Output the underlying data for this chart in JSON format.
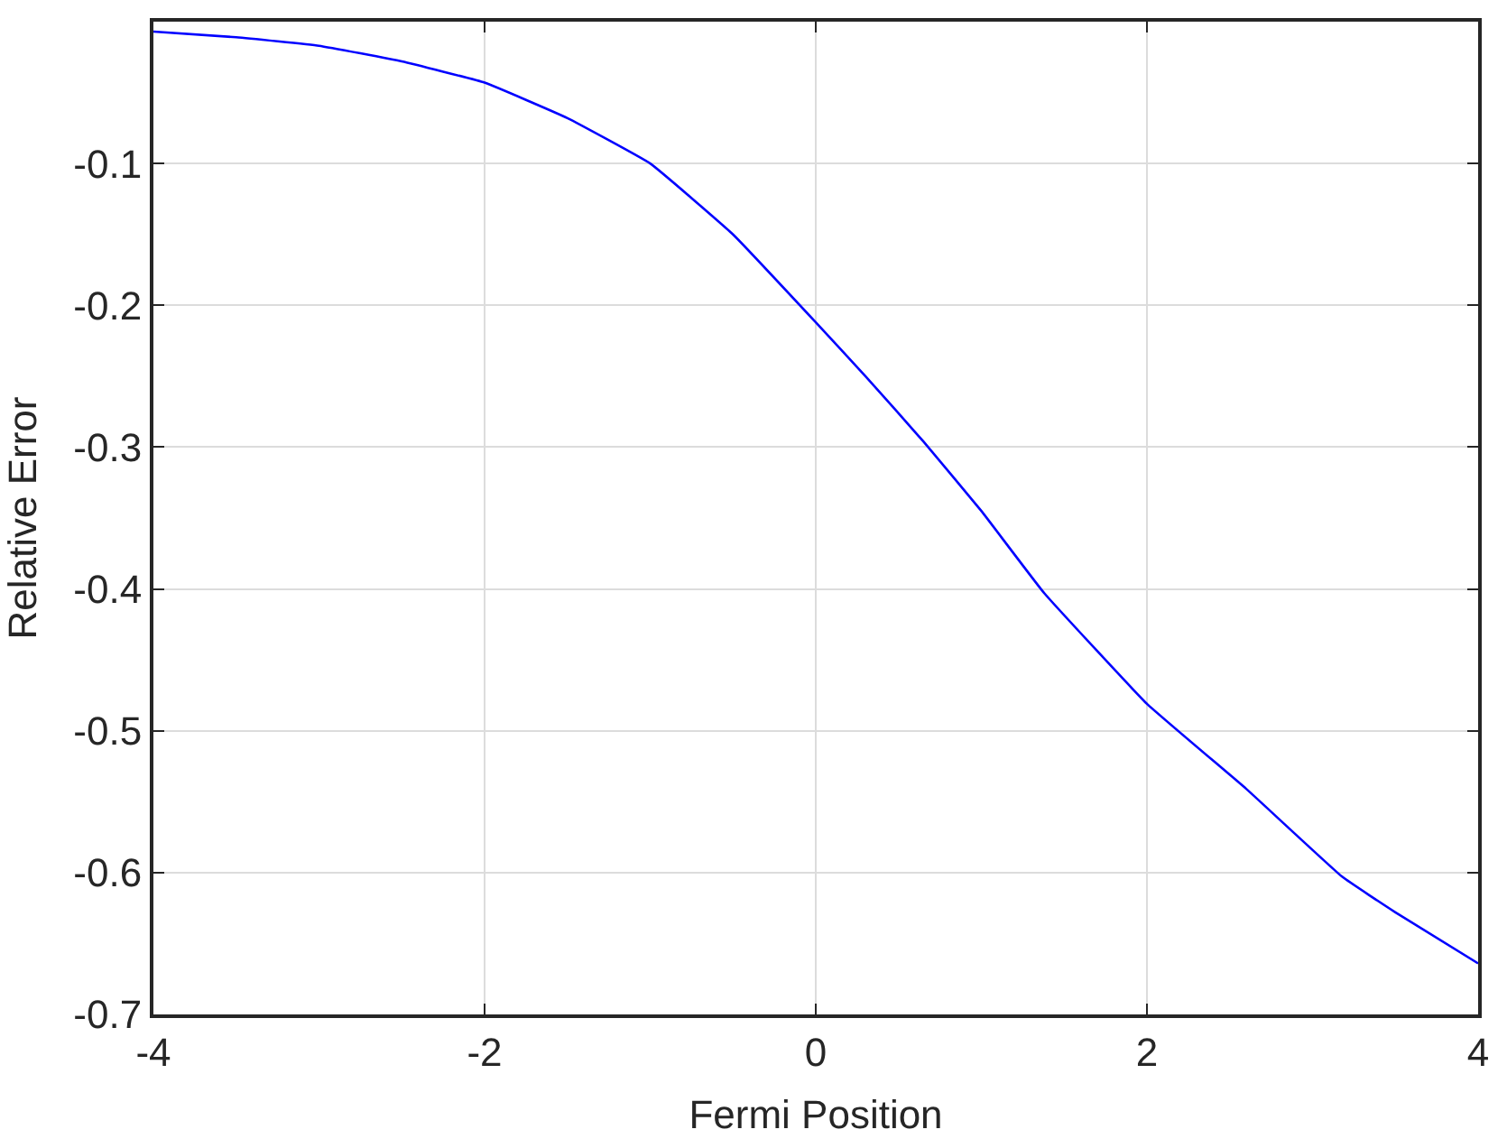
{
  "chart_data": {
    "type": "line",
    "xlabel": "Fermi Position",
    "ylabel": "Relative Error",
    "x": [
      -4,
      -3.5,
      -3,
      -2.5,
      -2,
      -1.5,
      -1,
      -0.5,
      0,
      0.3,
      0.65,
      1,
      1.38,
      2,
      2.6,
      3.18,
      3.5,
      4
    ],
    "series": [
      {
        "color": "#0000ff",
        "values": [
          -0.007,
          -0.011,
          -0.017,
          -0.028,
          -0.043,
          -0.068,
          -0.1,
          -0.15,
          -0.212,
          -0.25,
          -0.296,
          -0.345,
          -0.403,
          -0.481,
          -0.541,
          -0.603,
          -0.628,
          -0.664
        ]
      }
    ],
    "xlim": [
      -4,
      4
    ],
    "xticks": [
      -4,
      -2,
      0,
      2,
      4
    ],
    "ylim": [
      -0.7,
      0
    ],
    "yticks": [
      -0.7,
      -0.6,
      -0.5,
      -0.4,
      -0.3,
      -0.2,
      -0.1
    ],
    "grid": true,
    "marker": "none",
    "line_style": "solid"
  }
}
